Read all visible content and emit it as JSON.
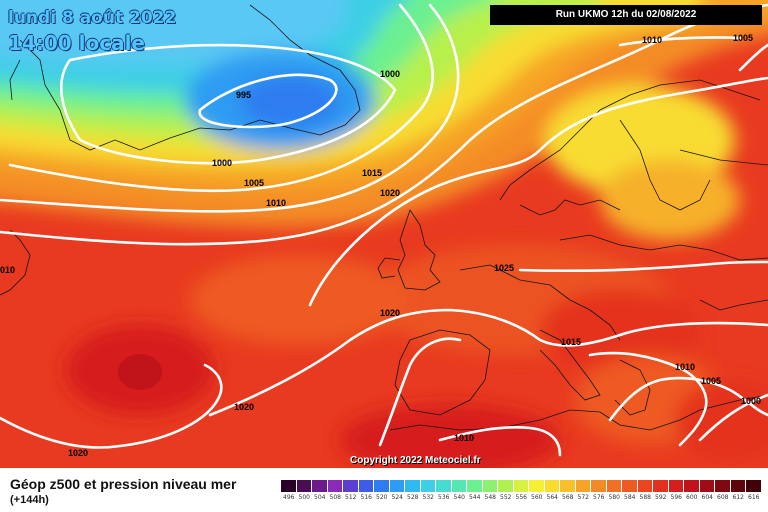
{
  "header": {
    "date": "lundi 8 août 2022",
    "local_time": "14:00 locale",
    "run_info": "Run UKMO 12h du 02/08/2022"
  },
  "footer": {
    "parameter": "Géop z500 et pression niveau mer",
    "lead_time": "(+144h)",
    "copyright": "Copyright 2022 Meteociel.fr"
  },
  "isobar_labels": {
    "l995": "995",
    "l1000a": "1000",
    "l1000b": "1000",
    "l1005a": "1005",
    "l1010a": "1010",
    "l1010b": "010",
    "l1015a": "1015",
    "l1020a": "1020",
    "l1025": "1025",
    "l1020b": "1020",
    "l1015b": "1015",
    "l1020c": "1020",
    "l1020d": "1020",
    "l1010c": "1010",
    "l1010d": "1010",
    "l1005b": "1005",
    "l1000c": "1000",
    "l1010e": "1010",
    "l1005c": "1005"
  },
  "legend": {
    "values": [
      "496",
      "500",
      "504",
      "508",
      "512",
      "516",
      "520",
      "524",
      "528",
      "532",
      "536",
      "540",
      "544",
      "548",
      "552",
      "556",
      "560",
      "564",
      "568",
      "572",
      "576",
      "580",
      "584",
      "588",
      "592",
      "596",
      "600",
      "604",
      "608",
      "612",
      "616"
    ],
    "colors": [
      "#2b0028",
      "#4a0d55",
      "#6a1a8a",
      "#8a2bb8",
      "#5a3fd0",
      "#3d5ce8",
      "#2f7cf0",
      "#2e9cf2",
      "#30b8f0",
      "#3ccfe6",
      "#46dcd2",
      "#55e6b4",
      "#6cf090",
      "#8cf070",
      "#b0f050",
      "#d8f040",
      "#f6f034",
      "#fadc2e",
      "#f8c02a",
      "#f6a428",
      "#f48a26",
      "#f27024",
      "#ee5a22",
      "#ea4420",
      "#e4301e",
      "#d61e1c",
      "#c0141a",
      "#a00c16",
      "#800812",
      "#60040c",
      "#400208"
    ]
  },
  "colors": {
    "title_text": "#4fc4ff",
    "isobars": "#ffffff"
  }
}
